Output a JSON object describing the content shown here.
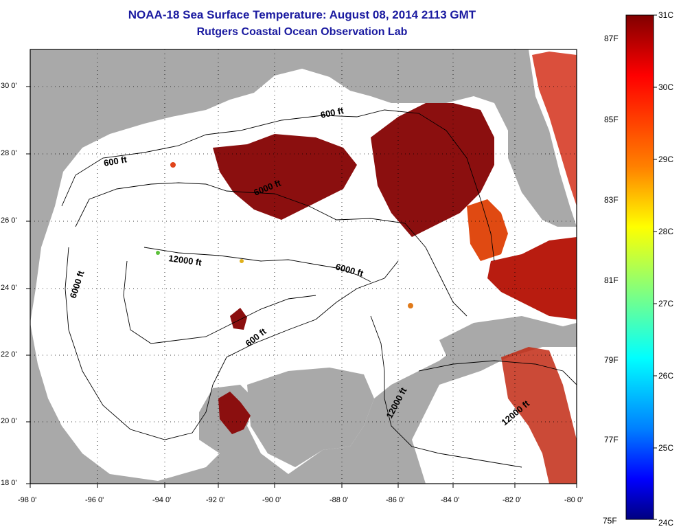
{
  "title": "NOAA-18 Sea Surface Temperature:  August 08, 2014 2113 GMT",
  "subtitle": "Rutgers Coastal Ocean Observation Lab",
  "lat_labels": [
    "30 0'",
    "28 0'",
    "26 0'",
    "24 0'",
    "22 0'",
    "20 0'",
    "18 0'"
  ],
  "lon_labels": [
    "-98 0'",
    "-96 0'",
    "-94 0'",
    "-92 0'",
    "-90 0'",
    "-88 0'",
    "-86 0'",
    "-84 0'",
    "-82 0'",
    "-80 0'"
  ],
  "contours": [
    "600 ft",
    "600 ft",
    "6000 ft",
    "6000 ft",
    "6000 ft",
    "12000 ft",
    "600 ft",
    "12000 ft",
    "12000 ft"
  ],
  "colorbar": {
    "celsius": [
      "31C",
      "30C",
      "29C",
      "28C",
      "27C",
      "26C",
      "25C",
      "24C"
    ],
    "fahrenheit": [
      "87F",
      "85F",
      "83F",
      "81F",
      "79F",
      "77F",
      "75F"
    ]
  },
  "colors": {
    "title": "#1a1aa0",
    "land": "#a9a9a9",
    "water_nodata": "#ffffff",
    "hot": "#8b0f0f"
  }
}
